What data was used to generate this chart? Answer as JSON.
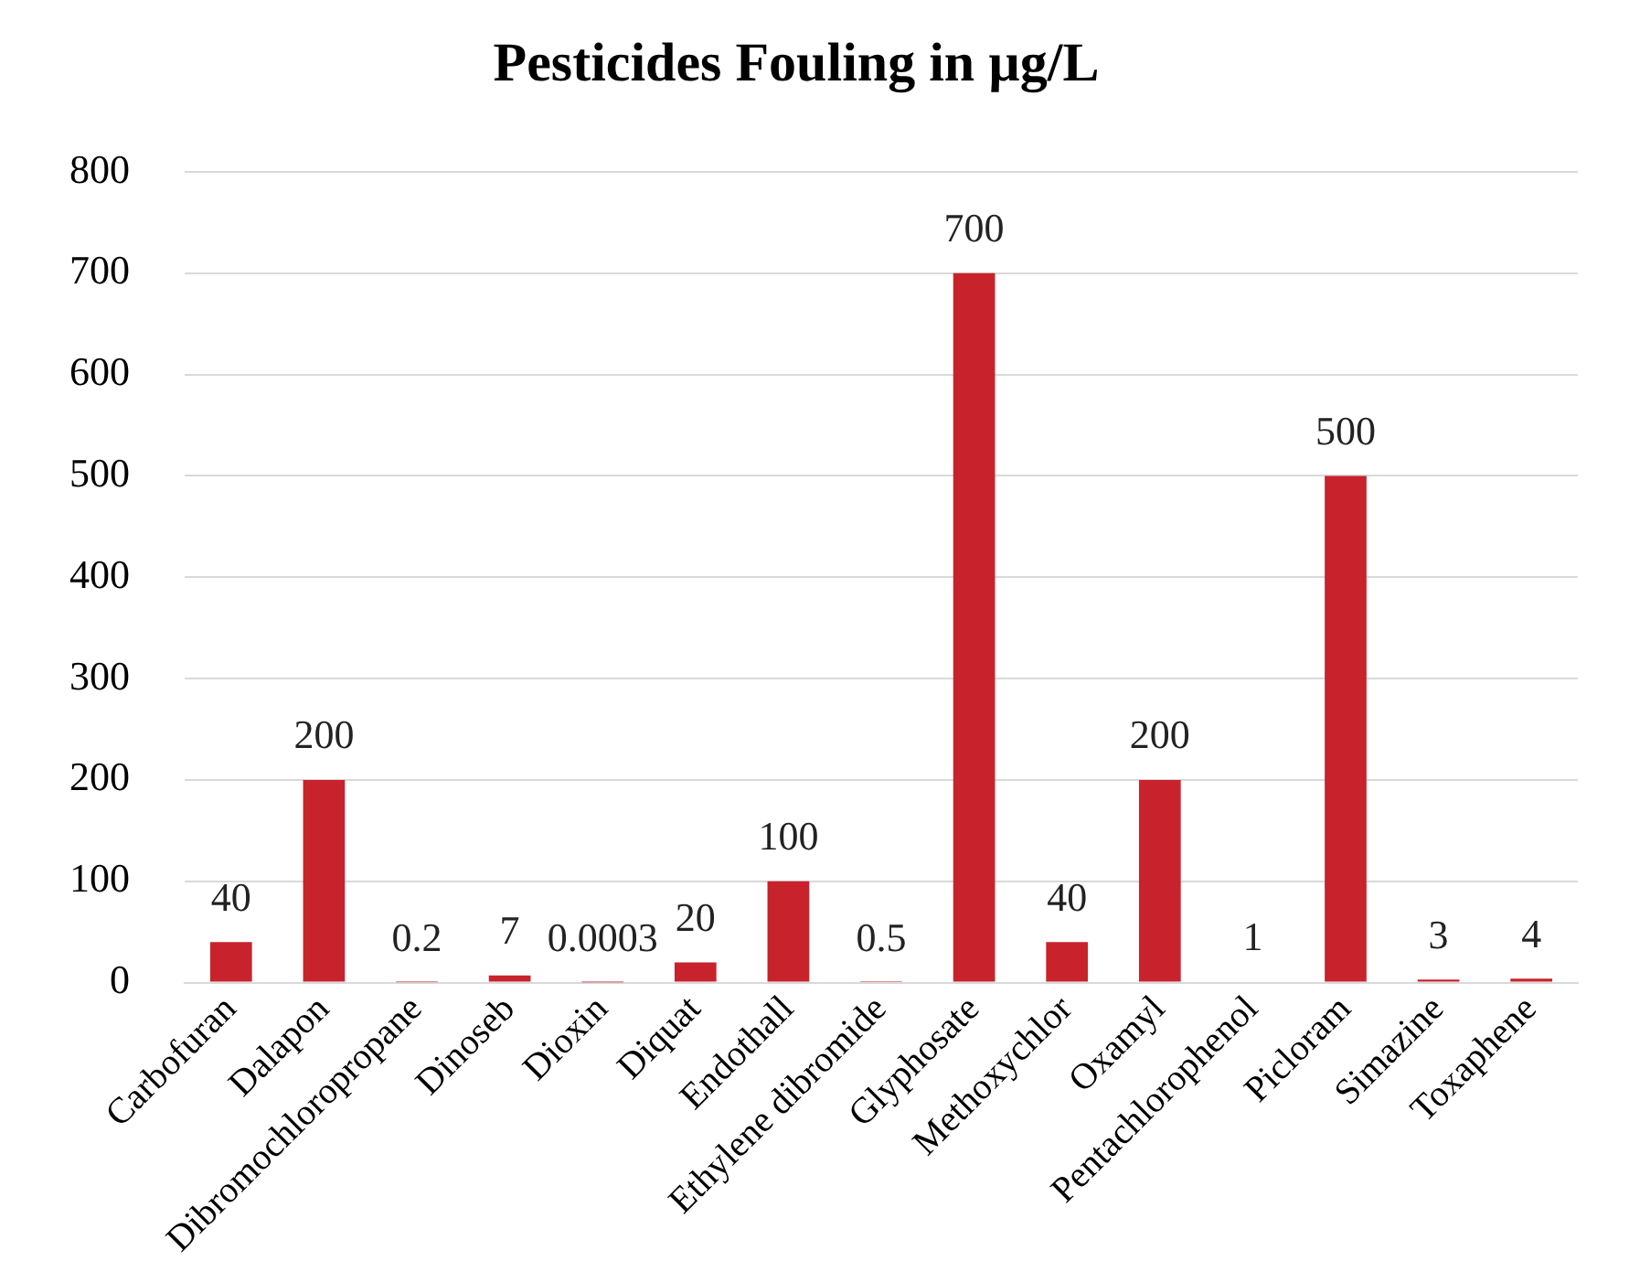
{
  "chart_data": {
    "type": "bar",
    "title": "Pesticides Fouling in µg/L",
    "categories": [
      "Carbofuran",
      "Dalapon",
      "Dibromochloropropane",
      "Dinoseb",
      "Dioxin",
      "Diquat",
      "Endothall",
      "Ethylene dibromide",
      "Glyphosate",
      "Methoxychlor",
      "Oxamyl",
      "Pentachlorophenol",
      "Picloram",
      "Simazine",
      "Toxaphene"
    ],
    "values": [
      40,
      200,
      0.2,
      7,
      0.0003,
      20,
      100,
      0.5,
      700,
      40,
      200,
      1,
      500,
      3,
      4
    ],
    "color": "#c8232c",
    "ylim": [
      0,
      800
    ],
    "yticks": [
      0,
      100,
      200,
      300,
      400,
      500,
      600,
      700,
      800
    ],
    "grid": "y",
    "data_labels": true
  }
}
